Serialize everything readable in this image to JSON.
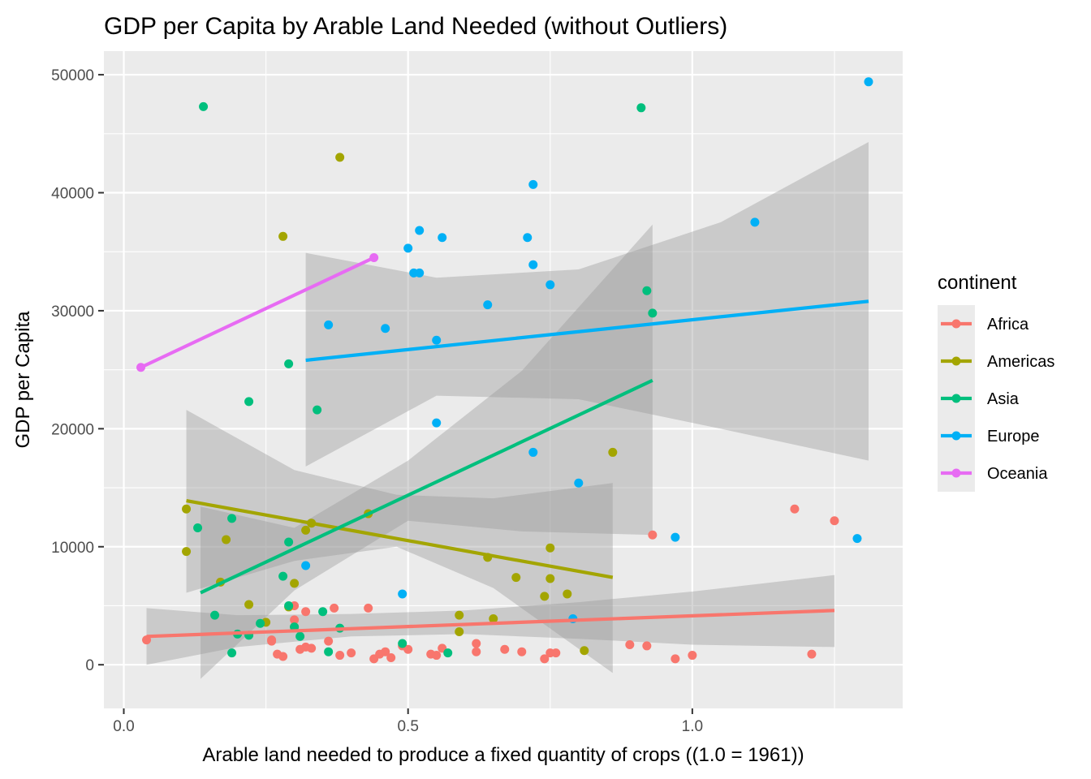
{
  "chart_data": {
    "type": "scatter",
    "title": "GDP per Capita by Arable Land Needed (without Outliers)",
    "xlabel": "Arable land needed to produce a fixed quantity of crops ((1.0 = 1961))",
    "ylabel": "GDP per Capita",
    "xlim": [
      -0.035,
      1.37
    ],
    "ylim": [
      -3700,
      52000
    ],
    "x_ticks": [
      0.0,
      0.5,
      1.0
    ],
    "x_tick_labels": [
      "0.0",
      "0.5",
      "1.0"
    ],
    "y_ticks": [
      0,
      10000,
      20000,
      30000,
      40000,
      50000
    ],
    "y_tick_labels": [
      "0",
      "10000",
      "20000",
      "30000",
      "40000",
      "50000"
    ],
    "grid": true,
    "legend": {
      "title": "continent",
      "position": "right"
    },
    "series": [
      {
        "name": "Africa",
        "color": "#F8766D",
        "points": [
          [
            0.04,
            2100
          ],
          [
            0.26,
            2000
          ],
          [
            0.27,
            900
          ],
          [
            0.28,
            700
          ],
          [
            0.3,
            3800
          ],
          [
            0.31,
            1300
          ],
          [
            0.32,
            1500
          ],
          [
            0.32,
            4500
          ],
          [
            0.33,
            1400
          ],
          [
            0.36,
            2000
          ],
          [
            0.37,
            4800
          ],
          [
            0.38,
            800
          ],
          [
            0.4,
            1000
          ],
          [
            0.43,
            4800
          ],
          [
            0.44,
            500
          ],
          [
            0.45,
            900
          ],
          [
            0.46,
            1100
          ],
          [
            0.47,
            600
          ],
          [
            0.49,
            1600
          ],
          [
            0.5,
            1300
          ],
          [
            0.54,
            900
          ],
          [
            0.55,
            800
          ],
          [
            0.56,
            1400
          ],
          [
            0.62,
            1800
          ],
          [
            0.62,
            1100
          ],
          [
            0.7,
            1100
          ],
          [
            0.74,
            500
          ],
          [
            0.75,
            1000
          ],
          [
            0.76,
            1000
          ],
          [
            0.89,
            1700
          ],
          [
            0.92,
            1600
          ],
          [
            0.93,
            11000
          ],
          [
            0.97,
            500
          ],
          [
            1.0,
            800
          ],
          [
            1.18,
            13200
          ],
          [
            1.21,
            900
          ],
          [
            1.25,
            12200
          ],
          [
            0.3,
            5000
          ],
          [
            0.26,
            2100
          ],
          [
            0.67,
            1300
          ]
        ],
        "fit": {
          "x": [
            0.04,
            1.25
          ],
          "y": [
            2400,
            4600
          ]
        },
        "band": {
          "x": [
            0.04,
            0.2,
            0.4,
            0.6,
            0.8,
            1.0,
            1.25
          ],
          "lower": [
            0,
            1500,
            2400,
            2600,
            2200,
            1700,
            1500
          ],
          "upper": [
            4800,
            4200,
            4300,
            4600,
            5300,
            6200,
            7600
          ]
        }
      },
      {
        "name": "Americas",
        "color": "#A3A500",
        "points": [
          [
            0.11,
            13200
          ],
          [
            0.11,
            9600
          ],
          [
            0.17,
            7000
          ],
          [
            0.18,
            10600
          ],
          [
            0.22,
            5100
          ],
          [
            0.25,
            3600
          ],
          [
            0.28,
            36300
          ],
          [
            0.29,
            4900
          ],
          [
            0.3,
            6900
          ],
          [
            0.3,
            3200
          ],
          [
            0.32,
            11400
          ],
          [
            0.33,
            12000
          ],
          [
            0.38,
            43000
          ],
          [
            0.43,
            12800
          ],
          [
            0.59,
            4200
          ],
          [
            0.59,
            2800
          ],
          [
            0.64,
            9100
          ],
          [
            0.65,
            3900
          ],
          [
            0.69,
            7400
          ],
          [
            0.74,
            5800
          ],
          [
            0.75,
            9900
          ],
          [
            0.75,
            7300
          ],
          [
            0.78,
            6000
          ],
          [
            0.81,
            1200
          ],
          [
            0.86,
            18000
          ]
        ],
        "fit": {
          "x": [
            0.11,
            0.86
          ],
          "y": [
            13900,
            7400
          ]
        },
        "band": {
          "x": [
            0.11,
            0.3,
            0.48,
            0.65,
            0.86
          ],
          "lower": [
            6100,
            8800,
            10000,
            6500,
            -700
          ],
          "upper": [
            21600,
            16500,
            14400,
            14100,
            15400
          ]
        }
      },
      {
        "name": "Asia",
        "color": "#00BF7D",
        "points": [
          [
            0.14,
            47300
          ],
          [
            0.13,
            11600
          ],
          [
            0.16,
            4200
          ],
          [
            0.19,
            12400
          ],
          [
            0.19,
            1000
          ],
          [
            0.2,
            2600
          ],
          [
            0.22,
            2500
          ],
          [
            0.22,
            22300
          ],
          [
            0.24,
            3500
          ],
          [
            0.28,
            7500
          ],
          [
            0.29,
            25500
          ],
          [
            0.29,
            5000
          ],
          [
            0.3,
            3200
          ],
          [
            0.31,
            2400
          ],
          [
            0.34,
            21600
          ],
          [
            0.35,
            4500
          ],
          [
            0.36,
            1100
          ],
          [
            0.38,
            3100
          ],
          [
            0.49,
            1800
          ],
          [
            0.57,
            1000
          ],
          [
            0.91,
            47200
          ],
          [
            0.92,
            31700
          ],
          [
            0.93,
            29800
          ],
          [
            0.29,
            10400
          ]
        ],
        "fit": {
          "x": [
            0.135,
            0.93
          ],
          "y": [
            6100,
            24100
          ]
        },
        "band": {
          "x": [
            0.135,
            0.3,
            0.5,
            0.7,
            0.93
          ],
          "lower": [
            -1200,
            6300,
            12200,
            11300,
            11000
          ],
          "upper": [
            13400,
            11600,
            17300,
            24900,
            37300
          ]
        }
      },
      {
        "name": "Europe",
        "color": "#00B0F6",
        "points": [
          [
            0.32,
            8400
          ],
          [
            0.36,
            28800
          ],
          [
            0.46,
            28500
          ],
          [
            0.49,
            6000
          ],
          [
            0.5,
            35300
          ],
          [
            0.51,
            33200
          ],
          [
            0.52,
            33200
          ],
          [
            0.52,
            36800
          ],
          [
            0.55,
            27500
          ],
          [
            0.55,
            20500
          ],
          [
            0.56,
            36200
          ],
          [
            0.64,
            30500
          ],
          [
            0.71,
            36200
          ],
          [
            0.72,
            40700
          ],
          [
            0.72,
            33900
          ],
          [
            0.72,
            18000
          ],
          [
            0.75,
            32200
          ],
          [
            0.79,
            3900
          ],
          [
            0.8,
            15400
          ],
          [
            0.97,
            10800
          ],
          [
            1.11,
            37500
          ],
          [
            1.29,
            10700
          ],
          [
            1.31,
            49400
          ]
        ],
        "fit": {
          "x": [
            0.32,
            1.31
          ],
          "y": [
            25800,
            30800
          ]
        },
        "band": {
          "x": [
            0.32,
            0.55,
            0.8,
            1.05,
            1.31
          ],
          "lower": [
            16800,
            22800,
            22500,
            20000,
            17300
          ],
          "upper": [
            34900,
            32800,
            33500,
            37500,
            44300
          ]
        }
      },
      {
        "name": "Oceania",
        "color": "#E76BF3",
        "points": [
          [
            0.03,
            25200
          ],
          [
            0.44,
            34500
          ]
        ],
        "fit": {
          "x": [
            0.03,
            0.44
          ],
          "y": [
            25200,
            34500
          ]
        },
        "band": null
      }
    ]
  }
}
